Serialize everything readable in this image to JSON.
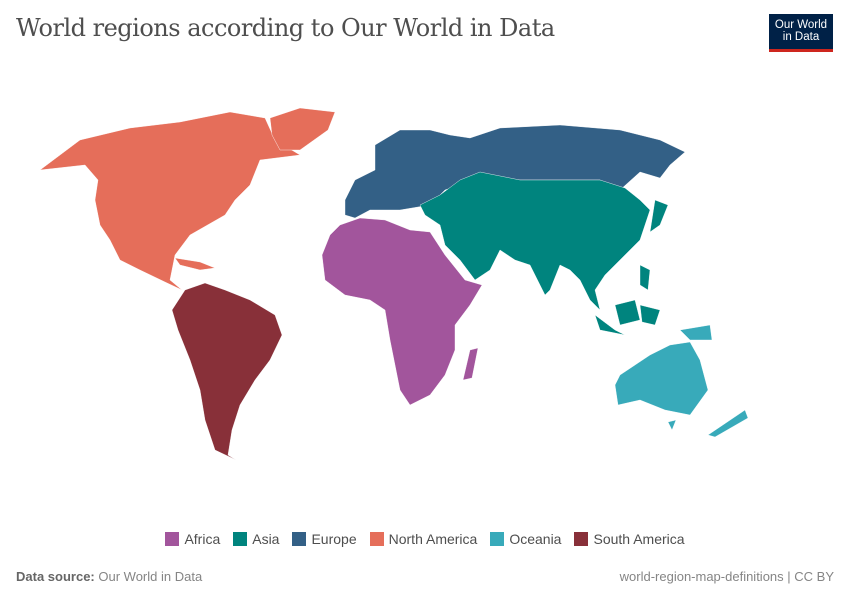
{
  "title": "World regions according to Our World in Data",
  "logo": {
    "line1": "Our World",
    "line2": "in Data"
  },
  "legend": [
    {
      "label": "Africa",
      "color": "#a2559c"
    },
    {
      "label": "Asia",
      "color": "#00847e"
    },
    {
      "label": "Europe",
      "color": "#336086"
    },
    {
      "label": "North America",
      "color": "#e56e5a"
    },
    {
      "label": "Oceania",
      "color": "#38aaba"
    },
    {
      "label": "South America",
      "color": "#883039"
    }
  ],
  "footer": {
    "source_label": "Data source:",
    "source": "Our World in Data",
    "slug_license": "world-region-map-definitions | CC BY"
  }
}
